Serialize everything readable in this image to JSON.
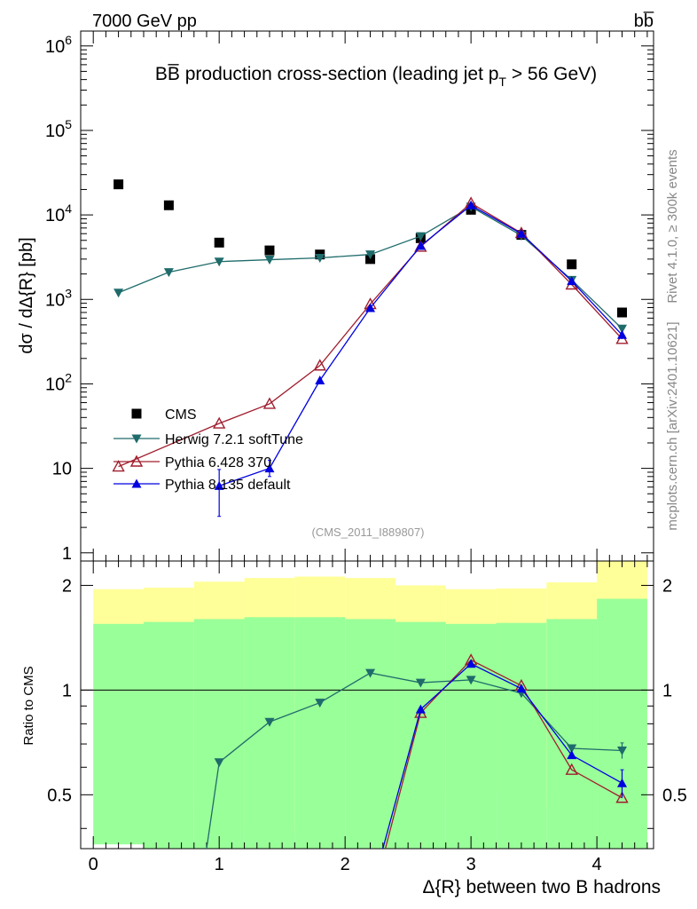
{
  "header": {
    "left": "7000 GeV pp",
    "right": "bb̅"
  },
  "side_labels": {
    "rivet": "Rivet 4.1.0, ≥ 300k events",
    "mcplots": "mcplots.cern.ch [arXiv:2401.10621]"
  },
  "chart_data": [
    {
      "type": "scatter",
      "title": "BB̅ production cross-section (leading jet p",
      "title_sub": "T",
      "title_tail": " > 56 GeV)",
      "ylabel": "dσ / dΔ{R} [pb]",
      "yscale": "log",
      "ylim": [
        0.8,
        1500000
      ],
      "xlim": [
        -0.1,
        4.45
      ],
      "yticks": [
        {
          "value": 1,
          "label": "1"
        },
        {
          "value": 10,
          "label": "10"
        },
        {
          "value": 100,
          "label": "10^2"
        },
        {
          "value": 1000,
          "label": "10^3"
        },
        {
          "value": 10000,
          "label": "10^4"
        },
        {
          "value": 100000,
          "label": "10^5"
        },
        {
          "value": 1000000,
          "label": "10^6"
        }
      ],
      "watermark": "(CMS_2011_I889807)",
      "series": [
        {
          "name": "CMS",
          "marker": "square",
          "color": "#000000",
          "x": [
            0.2,
            0.6,
            1.0,
            1.4,
            1.8,
            2.2,
            2.6,
            3.0,
            3.4,
            3.8,
            4.2
          ],
          "y": [
            23000,
            13000,
            4700,
            3800,
            3400,
            3000,
            5300,
            11500,
            5800,
            2600,
            700
          ]
        },
        {
          "name": "Herwig 7.2.1 softTune",
          "marker": "triangle-down",
          "color": "#1f6b6b",
          "x": [
            0.2,
            0.6,
            1.0,
            1.4,
            1.8,
            2.2,
            2.6,
            3.0,
            3.4,
            3.8,
            4.2
          ],
          "y": [
            1200,
            2100,
            2800,
            2950,
            3100,
            3400,
            5600,
            12500,
            5700,
            1700,
            450
          ]
        },
        {
          "name": "Pythia 6.428 370",
          "marker": "triangle-up-open",
          "color": "#a01e2e",
          "x": [
            0.2,
            1.0,
            1.4,
            1.8,
            2.2,
            2.6,
            3.0,
            3.4,
            3.8,
            4.2
          ],
          "y": [
            10.5,
            34,
            58,
            165,
            880,
            4200,
            13800,
            6100,
            1500,
            340
          ]
        },
        {
          "name": "Pythia 8.135 default",
          "marker": "triangle-up",
          "color": "#0000e0",
          "x": [
            1.0,
            1.4,
            1.8,
            2.2,
            2.6,
            3.0,
            3.4,
            3.8,
            4.2
          ],
          "y": [
            6.2,
            10,
            110,
            790,
            4300,
            13000,
            6000,
            1650,
            380
          ],
          "yerr_low": [
            3.5,
            2,
            null,
            null,
            null,
            null,
            null,
            null,
            null
          ],
          "yerr_high": [
            3.5,
            2.5,
            null,
            null,
            null,
            null,
            null,
            null,
            null
          ]
        }
      ]
    },
    {
      "type": "scatter",
      "ylabel": "Ratio to CMS",
      "xlabel": "Δ{R} between two B hadrons",
      "yscale": "log",
      "ylim": [
        0.35,
        2.35
      ],
      "xlim": [
        -0.1,
        4.45
      ],
      "xticks": [
        0,
        1,
        2,
        3,
        4
      ],
      "yticks": [
        {
          "value": 0.5,
          "label": "0.5"
        },
        {
          "value": 1,
          "label": "1"
        },
        {
          "value": 2,
          "label": "2"
        }
      ],
      "bands": {
        "edges": [
          0,
          0.4,
          0.8,
          1.2,
          1.6,
          2.0,
          2.4,
          2.8,
          3.2,
          3.6,
          4.0,
          4.4
        ],
        "yellow_low": [
          0.53,
          0.52,
          0.44,
          0.41,
          0.39,
          0.41,
          0.47,
          0.53,
          0.51,
          0.45,
          0.35
        ],
        "yellow_high": [
          1.95,
          1.97,
          2.05,
          2.1,
          2.12,
          2.1,
          2.0,
          1.95,
          1.96,
          2.04,
          2.4
        ],
        "green_low": [
          0.36,
          0.35,
          0.35,
          0.35,
          0.35,
          0.35,
          0.35,
          0.35,
          0.35,
          0.35,
          0.35
        ],
        "green_high": [
          1.55,
          1.57,
          1.6,
          1.62,
          1.62,
          1.6,
          1.57,
          1.55,
          1.56,
          1.6,
          1.83
        ]
      },
      "series": [
        {
          "name": "Herwig 7.2.1 softTune",
          "marker": "triangle-down",
          "color": "#1f6b6b",
          "x": [
            1.0,
            1.4,
            1.8,
            2.2,
            2.6,
            3.0,
            3.4,
            3.8,
            4.2
          ],
          "y": [
            0.62,
            0.81,
            0.92,
            1.12,
            1.05,
            1.07,
            0.98,
            0.68,
            0.67
          ],
          "yerr": [
            null,
            null,
            null,
            null,
            null,
            null,
            null,
            null,
            0.035
          ],
          "extend_left_to": [
            0.9,
            0.3
          ]
        },
        {
          "name": "Pythia 6.428 370",
          "marker": "triangle-up-open",
          "color": "#a01e2e",
          "x": [
            2.6,
            3.0,
            3.4,
            3.8,
            4.2
          ],
          "y": [
            0.86,
            1.22,
            1.03,
            0.59,
            0.49
          ],
          "extend_left_to": [
            2.32,
            0.3
          ]
        },
        {
          "name": "Pythia 8.135 default",
          "marker": "triangle-up",
          "color": "#0000e0",
          "x": [
            2.6,
            3.0,
            3.4,
            3.8,
            4.2
          ],
          "y": [
            0.88,
            1.19,
            1.01,
            0.65,
            0.54
          ],
          "yerr": [
            null,
            null,
            null,
            null,
            0.05
          ],
          "extend_left_to": [
            2.3,
            0.3
          ]
        }
      ]
    }
  ]
}
